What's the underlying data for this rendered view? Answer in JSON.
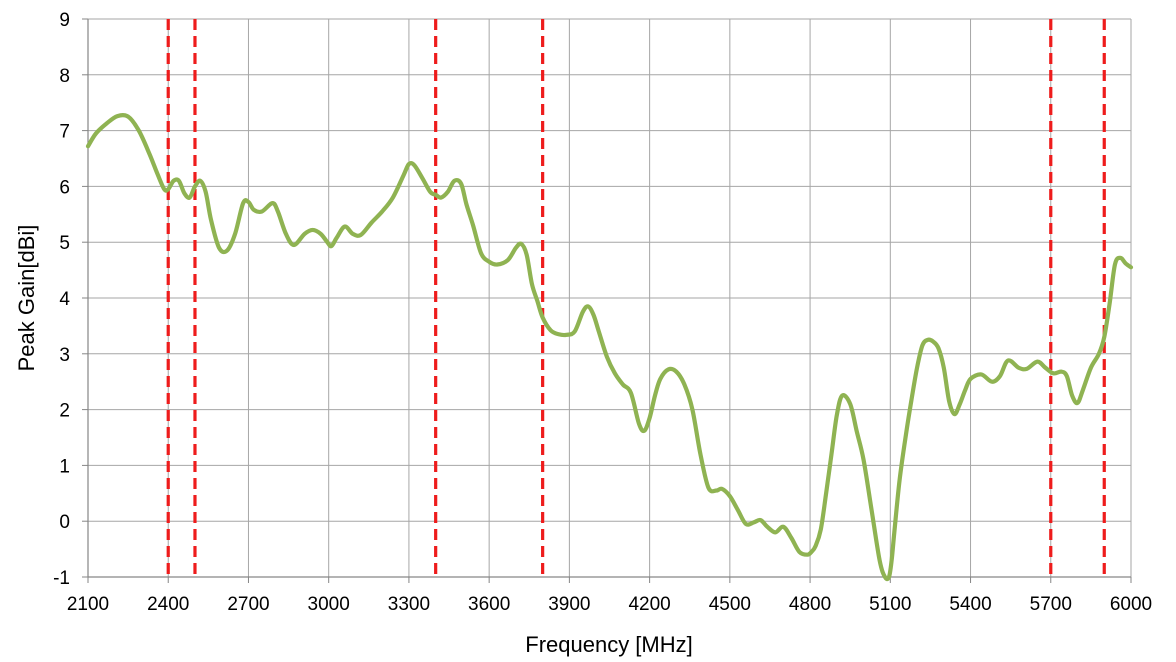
{
  "chart_data": {
    "type": "line",
    "title": "",
    "xlabel": "Frequency [MHz]",
    "ylabel": "Peak Gain[dBi]",
    "xlim": [
      2100,
      6000
    ],
    "ylim": [
      -1,
      9
    ],
    "x_ticks": [
      "2100",
      "2400",
      "2700",
      "3000",
      "3300",
      "3600",
      "3900",
      "4200",
      "4500",
      "4800",
      "5100",
      "5400",
      "5700",
      "6000"
    ],
    "y_ticks": [
      "9",
      "8",
      "7",
      "6",
      "5",
      "4",
      "3",
      "2",
      "1",
      "0",
      "-1"
    ],
    "grid": true,
    "legend": "none",
    "colors": {
      "series": "#8fb352",
      "markers": "#ee1c1c",
      "grid": "#a6a6a6"
    },
    "vertical_markers_mhz": [
      2400,
      2500,
      3400,
      3800,
      5700,
      5900
    ],
    "series": [
      {
        "x": [
          2100,
          2130,
          2170,
          2210,
          2250,
          2290,
          2330,
          2360,
          2385,
          2400,
          2420,
          2440,
          2460,
          2480,
          2500,
          2520,
          2540,
          2560,
          2590,
          2620,
          2650,
          2680,
          2700,
          2720,
          2750,
          2790,
          2810,
          2840,
          2870,
          2910,
          2940,
          2970,
          2995,
          3010,
          3030,
          3060,
          3090,
          3120,
          3160,
          3200,
          3240,
          3280,
          3300,
          3320,
          3350,
          3380,
          3400,
          3420,
          3445,
          3470,
          3495,
          3515,
          3540,
          3570,
          3600,
          3630,
          3670,
          3700,
          3720,
          3740,
          3760,
          3780,
          3800,
          3830,
          3860,
          3890,
          3920,
          3950,
          3970,
          3990,
          4010,
          4040,
          4070,
          4100,
          4130,
          4160,
          4180,
          4200,
          4220,
          4240,
          4270,
          4300,
          4330,
          4360,
          4390,
          4420,
          4450,
          4470,
          4500,
          4530,
          4560,
          4590,
          4615,
          4640,
          4670,
          4700,
          4730,
          4760,
          4790,
          4805,
          4820,
          4840,
          4860,
          4880,
          4900,
          4920,
          4950,
          4975,
          5000,
          5030,
          5060,
          5080,
          5095,
          5105,
          5115,
          5135,
          5160,
          5180,
          5200,
          5220,
          5240,
          5260,
          5280,
          5300,
          5320,
          5340,
          5360,
          5380,
          5400,
          5440,
          5480,
          5510,
          5540,
          5580,
          5610,
          5650,
          5680,
          5710,
          5740,
          5760,
          5780,
          5800,
          5820,
          5850,
          5880,
          5900,
          5920,
          5940,
          5960,
          5980,
          6000
        ],
        "values": [
          6.72,
          6.95,
          7.13,
          7.26,
          7.25,
          7.0,
          6.58,
          6.22,
          5.95,
          5.95,
          6.1,
          6.1,
          5.88,
          5.8,
          6.0,
          6.1,
          5.9,
          5.4,
          4.9,
          4.85,
          5.15,
          5.7,
          5.72,
          5.58,
          5.55,
          5.7,
          5.55,
          5.15,
          4.95,
          5.15,
          5.22,
          5.15,
          5.0,
          4.93,
          5.08,
          5.28,
          5.15,
          5.13,
          5.35,
          5.55,
          5.8,
          6.2,
          6.4,
          6.38,
          6.15,
          5.9,
          5.85,
          5.8,
          5.9,
          6.1,
          6.05,
          5.68,
          5.3,
          4.8,
          4.65,
          4.6,
          4.68,
          4.9,
          4.97,
          4.78,
          4.25,
          3.95,
          3.65,
          3.42,
          3.35,
          3.34,
          3.4,
          3.75,
          3.85,
          3.7,
          3.4,
          2.95,
          2.65,
          2.45,
          2.3,
          1.75,
          1.62,
          1.85,
          2.25,
          2.55,
          2.72,
          2.68,
          2.45,
          2.0,
          1.2,
          0.6,
          0.55,
          0.58,
          0.45,
          0.2,
          -0.05,
          -0.02,
          0.02,
          -0.1,
          -0.2,
          -0.1,
          -0.3,
          -0.55,
          -0.6,
          -0.55,
          -0.45,
          -0.15,
          0.5,
          1.2,
          1.9,
          2.25,
          2.1,
          1.6,
          1.1,
          0.2,
          -0.7,
          -1.0,
          -1.0,
          -0.7,
          -0.2,
          0.75,
          1.6,
          2.2,
          2.75,
          3.15,
          3.25,
          3.22,
          3.1,
          2.75,
          2.15,
          1.92,
          2.1,
          2.35,
          2.55,
          2.63,
          2.5,
          2.6,
          2.88,
          2.75,
          2.73,
          2.86,
          2.75,
          2.65,
          2.68,
          2.6,
          2.25,
          2.12,
          2.35,
          2.75,
          3.0,
          3.3,
          3.9,
          4.6,
          4.72,
          4.62,
          4.55
        ]
      }
    ]
  }
}
